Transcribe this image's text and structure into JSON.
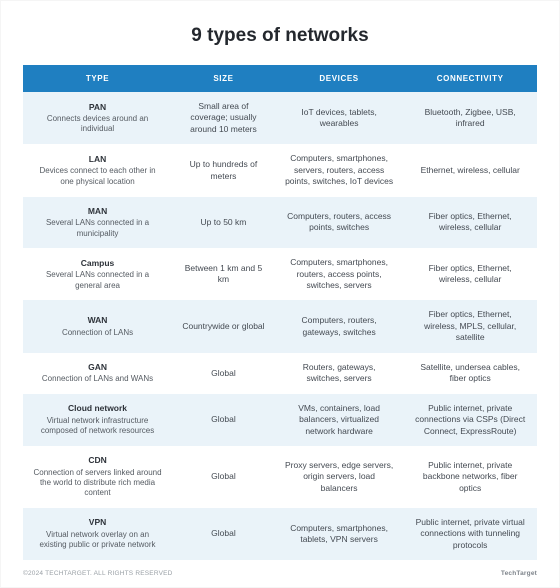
{
  "title": "9 types of networks",
  "columns": [
    "TYPE",
    "SIZE",
    "DEVICES",
    "CONNECTIVITY"
  ],
  "header_bg": "#1f7fc1",
  "header_fg": "#ffffff",
  "band_bg": "#eaf3f9",
  "plain_bg": "#ffffff",
  "text_color": "#444a52",
  "title_color": "#24282e",
  "col_widths": [
    "29%",
    "20%",
    "25%",
    "26%"
  ],
  "rows": [
    {
      "name": "PAN",
      "desc": "Connects devices around an individual",
      "size": "Small area of coverage; usually around 10 meters",
      "devices": "IoT devices, tablets, wearables",
      "connectivity": "Bluetooth, Zigbee, USB, infrared"
    },
    {
      "name": "LAN",
      "desc": "Devices connect to each other in one physical location",
      "size": "Up to hundreds of meters",
      "devices": "Computers, smartphones, servers, routers, access points, switches, IoT devices",
      "connectivity": "Ethernet, wireless, cellular"
    },
    {
      "name": "MAN",
      "desc": "Several LANs connected in a municipality",
      "size": "Up to 50 km",
      "devices": "Computers, routers, access points, switches",
      "connectivity": "Fiber optics, Ethernet, wireless, cellular"
    },
    {
      "name": "Campus",
      "desc": "Several LANs connected in a general area",
      "size": "Between 1 km and 5 km",
      "devices": "Computers, smartphones, routers, access points, switches, servers",
      "connectivity": "Fiber optics, Ethernet, wireless, cellular"
    },
    {
      "name": "WAN",
      "desc": "Connection of LANs",
      "size": "Countrywide or global",
      "devices": "Computers, routers, gateways, switches",
      "connectivity": "Fiber optics, Ethernet, wireless, MPLS, cellular, satellite"
    },
    {
      "name": "GAN",
      "desc": "Connection of LANs and WANs",
      "size": "Global",
      "devices": "Routers, gateways, switches, servers",
      "connectivity": "Satellite, undersea cables, fiber optics"
    },
    {
      "name": "Cloud network",
      "desc": "Virtual network infrastructure composed of network resources",
      "size": "Global",
      "devices": "VMs, containers, load balancers, virtualized network hardware",
      "connectivity": "Public internet, private connections via CSPs (Direct Connect, ExpressRoute)"
    },
    {
      "name": "CDN",
      "desc": "Connection of servers linked around the world to distribute rich media content",
      "size": "Global",
      "devices": "Proxy servers, edge servers, origin servers, load balancers",
      "connectivity": "Public internet, private backbone networks, fiber optics"
    },
    {
      "name": "VPN",
      "desc": "Virtual network overlay on an existing public or private network",
      "size": "Global",
      "devices": "Computers, smartphones, tablets, VPN servers",
      "connectivity": "Public internet, private virtual connections with tunneling protocols"
    }
  ],
  "footer_left": "©2024 TECHTARGET. ALL RIGHTS RESERVED",
  "footer_right": "TechTarget"
}
